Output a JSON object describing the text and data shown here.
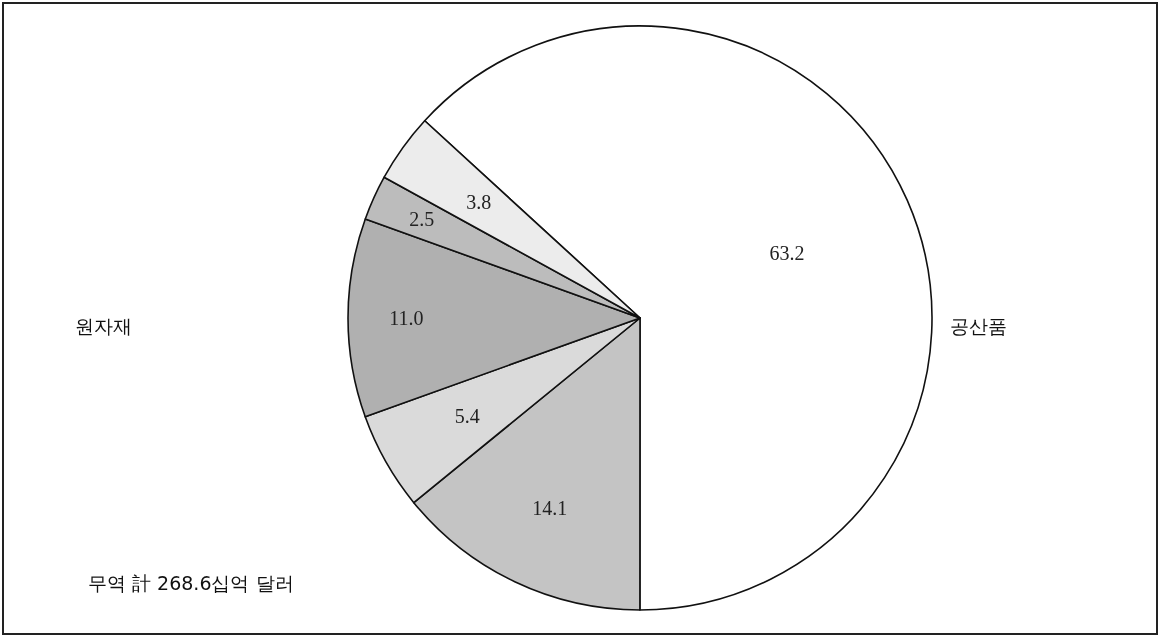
{
  "chart_data": {
    "type": "pie",
    "categories": [
      null,
      null,
      null,
      null,
      null,
      null
    ],
    "values": [
      63.2,
      14.1,
      5.4,
      11.0,
      2.5,
      3.8
    ],
    "value_labels": [
      "63.2",
      "14.1",
      "5.4",
      "11.0",
      "2.5",
      "3.8"
    ],
    "colors": [
      "#ffffff",
      "#c4c4c4",
      "#dadada",
      "#b0b0b0",
      "#bcbcbc",
      "#ececec"
    ],
    "annotations": [
      "원자재",
      "공산품",
      "무역 計 268.6십억 달러"
    ]
  }
}
